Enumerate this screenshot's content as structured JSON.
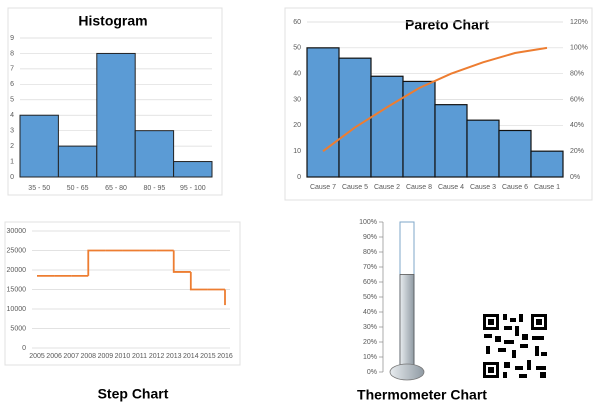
{
  "chart_data": [
    {
      "type": "histogram",
      "title": "Histogram",
      "categories": [
        "35 - 50",
        "50 - 65",
        "65 - 80",
        "80 - 95",
        "95 - 100"
      ],
      "values": [
        4,
        2,
        8,
        3,
        1
      ],
      "color": "#5b9bd5",
      "ylim": [
        0,
        9
      ],
      "yticks": [
        0,
        1,
        2,
        3,
        4,
        5,
        6,
        7,
        8,
        9
      ],
      "grid": true
    },
    {
      "type": "pareto",
      "title": "Pareto Chart",
      "categories": [
        "Cause 7",
        "Cause 5",
        "Cause 2",
        "Cause 8",
        "Cause 4",
        "Cause 3",
        "Cause 6",
        "Cause 1"
      ],
      "series": [
        {
          "color": "#5b9bd5",
          "values": [
            50,
            46,
            39,
            37,
            28,
            22,
            18,
            10
          ]
        },
        {
          "color": "#ed7d31",
          "axis": "y2",
          "values": [
            20,
            38.4,
            54,
            68.8,
            80,
            88.8,
            96,
            100
          ]
        }
      ],
      "ylim": [
        0,
        60
      ],
      "yticks": [
        0,
        10,
        20,
        30,
        40,
        50,
        60
      ],
      "y2lim": [
        0,
        120
      ],
      "y2ticks": [
        {
          "value": 0,
          "label": "0%"
        },
        {
          "value": 20,
          "label": "20%"
        },
        {
          "value": 40,
          "label": "40%"
        },
        {
          "value": 60,
          "label": "60%"
        },
        {
          "value": 80,
          "label": "80%"
        },
        {
          "value": 100,
          "label": "100%"
        },
        {
          "value": 120,
          "label": "120%"
        }
      ],
      "grid": true
    },
    {
      "type": "step",
      "title": "Step Chart",
      "categories": [
        "2005",
        "2006",
        "2007",
        "2008",
        "2009",
        "2010",
        "2011",
        "2012",
        "2013",
        "2014",
        "2015",
        "2016"
      ],
      "values": [
        18500,
        18500,
        18500,
        25000,
        25000,
        25000,
        25000,
        25000,
        19500,
        15000,
        15000,
        11000
      ],
      "color": "#ed7d31",
      "ylim": [
        0,
        30000
      ],
      "yticks": [
        0,
        5000,
        10000,
        15000,
        20000,
        25000,
        30000
      ],
      "grid": true
    },
    {
      "type": "thermometer",
      "title": "Thermometer Chart",
      "values": [
        65
      ],
      "color": "#8f9aa3",
      "ylim": [
        0,
        100
      ],
      "yticks": [
        {
          "value": 0,
          "label": "0%"
        },
        {
          "value": 10,
          "label": "10%"
        },
        {
          "value": 20,
          "label": "20%"
        },
        {
          "value": 30,
          "label": "30%"
        },
        {
          "value": 40,
          "label": "40%"
        },
        {
          "value": 50,
          "label": "50%"
        },
        {
          "value": 60,
          "label": "60%"
        },
        {
          "value": 70,
          "label": "70%"
        },
        {
          "value": 80,
          "label": "80%"
        },
        {
          "value": 90,
          "label": "90%"
        },
        {
          "value": 100,
          "label": "100%"
        }
      ]
    }
  ]
}
